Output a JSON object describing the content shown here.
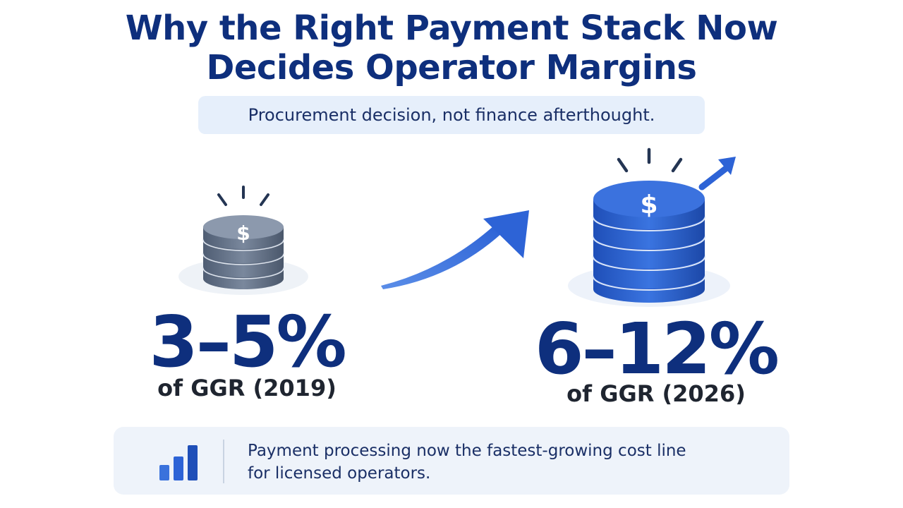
{
  "title": {
    "line1": "Why the Right Payment Stack Now",
    "line2": "Decides Operator Margins"
  },
  "subtitle": "Procurement decision, not finance afterthought.",
  "left_stat": {
    "value": "3–5%",
    "caption": "of GGR (2019)",
    "icon": "coin-stack-icon",
    "color": "#6b7a90"
  },
  "right_stat": {
    "value": "6–12%",
    "caption": "of GGR (2026)",
    "icon": "coin-stack-icon",
    "color": "#2d63d6"
  },
  "growth_arrow": {
    "icon": "trend-up-arrow-icon",
    "color": "#3a72dc"
  },
  "footer": {
    "icon": "bar-chart-icon",
    "line1": "Payment processing now the fastest-growing cost line",
    "line2": "for licensed operators."
  },
  "colors": {
    "title": "#0e2f7d",
    "accent": "#2d63d6",
    "pill_bg": "#e6effb",
    "footer_bg": "#eef3fa"
  }
}
